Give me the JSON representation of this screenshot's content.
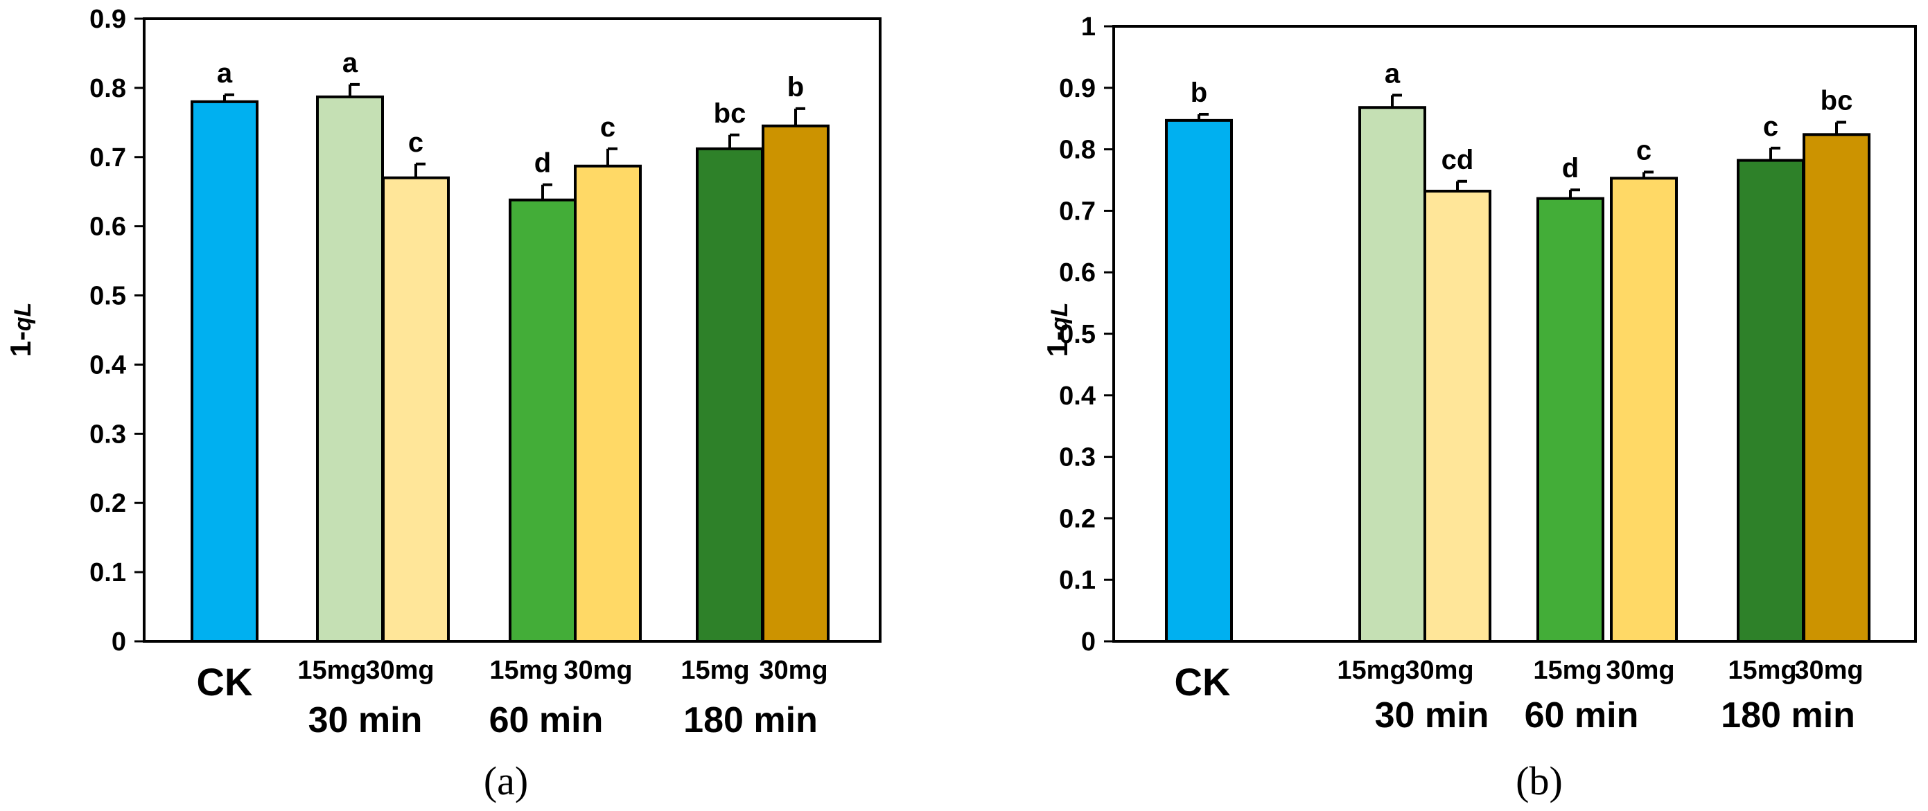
{
  "chart_data": [
    {
      "type": "bar",
      "panel_label": "(a)",
      "ylabel_prefix": "1-",
      "ylabel_italic": "qL",
      "ylim": [
        0,
        0.9
      ],
      "yticks": [
        "0",
        "0.1",
        "0.2",
        "0.3",
        "0.4",
        "0.5",
        "0.6",
        "0.7",
        "0.8",
        "0.9"
      ],
      "bars": [
        {
          "name": "CK",
          "value": 0.78,
          "error": 0.01,
          "letter": "a",
          "color": "#00B0F0"
        },
        {
          "name": "30 min 15mg",
          "value": 0.787,
          "error": 0.018,
          "letter": "a",
          "color": "#C5E0B4"
        },
        {
          "name": "30 min 30mg",
          "value": 0.67,
          "error": 0.02,
          "letter": "c",
          "color": "#FFE699"
        },
        {
          "name": "60 min 15mg",
          "value": 0.638,
          "error": 0.022,
          "letter": "d",
          "color": "#43AD38"
        },
        {
          "name": "60 min 30mg",
          "value": 0.687,
          "error": 0.025,
          "letter": "c",
          "color": "#FFD966"
        },
        {
          "name": "180 min 15mg",
          "value": 0.712,
          "error": 0.02,
          "letter": "bc",
          "color": "#2E8129"
        },
        {
          "name": "180 min 30mg",
          "value": 0.745,
          "error": 0.025,
          "letter": "b",
          "color": "#CC9300"
        }
      ],
      "categories": {
        "ck": "CK",
        "doses": [
          "15mg",
          "30mg",
          "15mg",
          "30mg",
          "15mg",
          "30mg"
        ],
        "groups": [
          "30 min",
          "60 min",
          "180 min"
        ]
      }
    },
    {
      "type": "bar",
      "panel_label": "(b)",
      "ylabel_prefix": "1-",
      "ylabel_italic": "qL",
      "ylim": [
        0,
        1
      ],
      "yticks": [
        "0",
        "0.1",
        "0.2",
        "0.3",
        "0.4",
        "0.5",
        "0.6",
        "0.7",
        "0.8",
        "0.9",
        "1"
      ],
      "bars": [
        {
          "name": "CK",
          "value": 0.847,
          "error": 0.01,
          "letter": "b",
          "color": "#00B0F0"
        },
        {
          "name": "30 min 15mg",
          "value": 0.868,
          "error": 0.02,
          "letter": "a",
          "color": "#C5E0B4"
        },
        {
          "name": "30 min 30mg",
          "value": 0.732,
          "error": 0.016,
          "letter": "cd",
          "color": "#FFE699"
        },
        {
          "name": "60 min 15mg",
          "value": 0.72,
          "error": 0.014,
          "letter": "d",
          "color": "#43AD38"
        },
        {
          "name": "60 min 30mg",
          "value": 0.753,
          "error": 0.01,
          "letter": "c",
          "color": "#FFD966"
        },
        {
          "name": "180 min 15mg",
          "value": 0.782,
          "error": 0.02,
          "letter": "c",
          "color": "#2E8129"
        },
        {
          "name": "180 min 30mg",
          "value": 0.824,
          "error": 0.02,
          "letter": "bc",
          "color": "#CC9300"
        }
      ],
      "categories": {
        "ck": "CK",
        "doses": [
          "15mg",
          "30mg",
          "15mg",
          "30mg",
          "15mg",
          "30mg"
        ],
        "groups": [
          "30 min",
          "60 min",
          "180 min"
        ]
      }
    }
  ]
}
